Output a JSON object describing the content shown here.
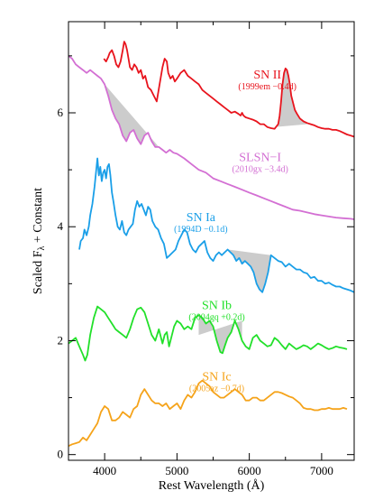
{
  "chart_data": {
    "type": "line",
    "title": "",
    "xlabel": "Rest Wavelength (Å)",
    "ylabel_main": "Scaled F",
    "ylabel_sub": "λ",
    "ylabel_rest": " + Constant",
    "xlim": [
      3500,
      7450
    ],
    "ylim": [
      -0.1,
      7.6
    ],
    "xticks": [
      4000,
      5000,
      6000,
      7000
    ],
    "xtick_labels": [
      "4000",
      "5000",
      "6000",
      "7000"
    ],
    "yticks": [
      0,
      2,
      4,
      6
    ],
    "ytick_labels": [
      "0",
      "2",
      "4",
      "6"
    ],
    "series": [
      {
        "name": "SN II",
        "epoch": "(1999em −0.4d)",
        "color": "#e8141d",
        "label_at": [
          6250,
          6.6
        ],
        "x": [
          3990,
          4020,
          4050,
          4070,
          4100,
          4130,
          4160,
          4190,
          4220,
          4250,
          4270,
          4290,
          4310,
          4330,
          4350,
          4380,
          4410,
          4440,
          4470,
          4500,
          4530,
          4560,
          4600,
          4640,
          4680,
          4720,
          4760,
          4800,
          4830,
          4860,
          4880,
          4910,
          4940,
          4970,
          5000,
          5050,
          5100,
          5150,
          5200,
          5250,
          5300,
          5350,
          5400,
          5450,
          5500,
          5550,
          5600,
          5650,
          5700,
          5750,
          5800,
          5850,
          5880,
          5900,
          5920,
          5950,
          6000,
          6050,
          6100,
          6150,
          6200,
          6250,
          6300,
          6350,
          6400,
          6420,
          6440,
          6460,
          6480,
          6500,
          6520,
          6540,
          6560,
          6580,
          6600,
          6630,
          6660,
          6700,
          6750,
          6800,
          6850,
          6900,
          6950,
          7000,
          7050,
          7100,
          7150,
          7200,
          7250,
          7300,
          7350,
          7400,
          7450
        ],
        "y": [
          6.95,
          6.9,
          6.98,
          7.05,
          7.1,
          7.0,
          6.85,
          6.8,
          6.9,
          7.1,
          7.25,
          7.2,
          7.1,
          6.95,
          6.8,
          6.75,
          6.85,
          6.8,
          6.7,
          6.75,
          6.6,
          6.65,
          6.45,
          6.4,
          6.3,
          6.2,
          6.5,
          6.8,
          6.95,
          6.9,
          6.7,
          6.6,
          6.65,
          6.55,
          6.6,
          6.7,
          6.75,
          6.65,
          6.6,
          6.55,
          6.5,
          6.4,
          6.35,
          6.3,
          6.25,
          6.2,
          6.15,
          6.1,
          6.05,
          6.0,
          6.02,
          5.98,
          5.95,
          6.0,
          5.95,
          5.92,
          5.9,
          5.88,
          5.85,
          5.8,
          5.8,
          5.75,
          5.73,
          5.72,
          5.8,
          5.95,
          6.2,
          6.5,
          6.7,
          6.78,
          6.75,
          6.65,
          6.5,
          6.3,
          6.2,
          6.05,
          5.98,
          5.9,
          5.85,
          5.82,
          5.8,
          5.78,
          5.75,
          5.73,
          5.72,
          5.72,
          5.7,
          5.7,
          5.68,
          5.65,
          5.62,
          5.6,
          5.58
        ]
      },
      {
        "name": "SLSN−I",
        "epoch": "(2010gx −3.4d)",
        "color": "#d36fd3",
        "label_at": [
          6150,
          5.15
        ],
        "x": [
          3500,
          3550,
          3600,
          3650,
          3700,
          3750,
          3800,
          3850,
          3900,
          3950,
          4000,
          4050,
          4100,
          4150,
          4200,
          4250,
          4300,
          4350,
          4400,
          4450,
          4500,
          4550,
          4600,
          4650,
          4700,
          4750,
          4800,
          4850,
          4900,
          4950,
          5000,
          5100,
          5200,
          5300,
          5400,
          5500,
          5600,
          5700,
          5800,
          5900,
          6000,
          6100,
          6200,
          6300,
          6400,
          6500,
          6600,
          6700,
          6800,
          6900,
          7000,
          7100,
          7200,
          7300,
          7400,
          7450
        ],
        "y": [
          7.0,
          6.95,
          6.85,
          6.8,
          6.75,
          6.7,
          6.75,
          6.7,
          6.65,
          6.6,
          6.5,
          6.3,
          6.05,
          5.9,
          5.8,
          5.6,
          5.5,
          5.65,
          5.7,
          5.55,
          5.45,
          5.6,
          5.65,
          5.5,
          5.4,
          5.4,
          5.35,
          5.3,
          5.35,
          5.3,
          5.28,
          5.2,
          5.1,
          5.0,
          4.95,
          4.85,
          4.8,
          4.75,
          4.7,
          4.65,
          4.6,
          4.55,
          4.5,
          4.45,
          4.4,
          4.35,
          4.3,
          4.28,
          4.25,
          4.22,
          4.2,
          4.18,
          4.16,
          4.15,
          4.14,
          4.13
        ]
      },
      {
        "name": "SN Ia",
        "epoch": "(1994D −0.1d)",
        "color": "#1a9fe8",
        "label_at": [
          5330,
          4.1
        ],
        "x": [
          3650,
          3670,
          3700,
          3720,
          3750,
          3780,
          3800,
          3830,
          3860,
          3880,
          3900,
          3920,
          3940,
          3960,
          3980,
          4000,
          4020,
          4040,
          4060,
          4080,
          4100,
          4120,
          4150,
          4180,
          4210,
          4240,
          4270,
          4300,
          4330,
          4360,
          4390,
          4420,
          4450,
          4480,
          4510,
          4540,
          4570,
          4600,
          4630,
          4660,
          4700,
          4740,
          4780,
          4820,
          4860,
          4900,
          4940,
          4980,
          5020,
          5060,
          5100,
          5140,
          5180,
          5220,
          5260,
          5300,
          5340,
          5380,
          5420,
          5460,
          5500,
          5540,
          5580,
          5620,
          5660,
          5700,
          5740,
          5780,
          5820,
          5860,
          5900,
          5940,
          5980,
          6020,
          6060,
          6100,
          6140,
          6180,
          6220,
          6260,
          6300,
          6350,
          6400,
          6450,
          6500,
          6550,
          6600,
          6650,
          6700,
          6750,
          6800,
          6850,
          6900,
          6950,
          7000,
          7050,
          7100,
          7150,
          7200,
          7250,
          7300,
          7350,
          7400,
          7450
        ],
        "y": [
          3.6,
          3.75,
          3.8,
          3.95,
          3.85,
          4.0,
          4.2,
          4.4,
          4.7,
          4.95,
          5.2,
          4.9,
          5.05,
          4.8,
          4.95,
          5.0,
          4.85,
          5.05,
          5.1,
          4.9,
          4.6,
          4.45,
          4.2,
          4.0,
          3.95,
          4.1,
          3.9,
          3.85,
          3.95,
          4.0,
          4.05,
          4.3,
          4.45,
          4.35,
          4.4,
          4.3,
          4.2,
          4.35,
          4.3,
          4.1,
          4.0,
          3.95,
          3.8,
          3.7,
          3.45,
          3.5,
          3.55,
          3.6,
          3.75,
          3.85,
          3.95,
          3.9,
          3.7,
          3.6,
          3.55,
          3.65,
          3.7,
          3.75,
          3.55,
          3.45,
          3.4,
          3.5,
          3.55,
          3.5,
          3.55,
          3.6,
          3.55,
          3.5,
          3.4,
          3.45,
          3.35,
          3.4,
          3.35,
          3.3,
          3.2,
          3.0,
          2.9,
          2.85,
          3.0,
          3.2,
          3.5,
          3.45,
          3.4,
          3.38,
          3.3,
          3.35,
          3.3,
          3.25,
          3.25,
          3.2,
          3.18,
          3.1,
          3.12,
          3.05,
          3.05,
          3.0,
          3.02,
          2.98,
          2.95,
          2.95,
          2.92,
          2.9,
          2.88,
          2.85
        ]
      },
      {
        "name": "SN Ib",
        "epoch": "(2004gq +0.2d)",
        "color": "#22e02a",
        "label_at": [
          5550,
          2.55
        ],
        "x": [
          3500,
          3550,
          3600,
          3650,
          3700,
          3730,
          3760,
          3800,
          3850,
          3900,
          3950,
          4000,
          4050,
          4100,
          4150,
          4200,
          4250,
          4300,
          4350,
          4400,
          4450,
          4500,
          4550,
          4600,
          4650,
          4700,
          4750,
          4800,
          4830,
          4860,
          4890,
          4920,
          4960,
          5000,
          5050,
          5100,
          5150,
          5200,
          5250,
          5300,
          5350,
          5400,
          5450,
          5500,
          5550,
          5600,
          5630,
          5660,
          5700,
          5750,
          5800,
          5850,
          5900,
          5950,
          6000,
          6050,
          6100,
          6150,
          6200,
          6250,
          6300,
          6350,
          6400,
          6450,
          6500,
          6550,
          6600,
          6650,
          6700,
          6750,
          6800,
          6850,
          6900,
          6950,
          7000,
          7050,
          7100,
          7150,
          7200,
          7250,
          7300,
          7350
        ],
        "y": [
          1.95,
          2.0,
          2.05,
          1.9,
          1.75,
          1.65,
          1.75,
          2.1,
          2.4,
          2.6,
          2.55,
          2.5,
          2.4,
          2.3,
          2.2,
          2.15,
          2.1,
          2.05,
          2.2,
          2.4,
          2.55,
          2.58,
          2.5,
          2.3,
          2.1,
          2.0,
          2.2,
          1.95,
          2.1,
          2.15,
          1.9,
          2.05,
          2.25,
          2.35,
          2.3,
          2.2,
          2.25,
          2.2,
          2.4,
          2.45,
          2.4,
          2.3,
          2.35,
          2.25,
          2.0,
          1.8,
          1.78,
          1.9,
          2.05,
          2.15,
          2.35,
          2.2,
          2.0,
          1.9,
          1.85,
          2.05,
          2.1,
          2.0,
          1.95,
          1.9,
          1.92,
          2.05,
          2.0,
          1.92,
          1.85,
          1.95,
          1.9,
          1.85,
          1.88,
          1.92,
          1.9,
          1.85,
          1.9,
          1.95,
          1.92,
          1.88,
          1.85,
          1.87,
          1.9,
          1.88,
          1.87,
          1.85
        ]
      },
      {
        "name": "SN Ic",
        "epoch": "(2005az −0.7d)",
        "color": "#f5a31a",
        "label_at": [
          5550,
          1.3
        ],
        "x": [
          3500,
          3550,
          3600,
          3650,
          3700,
          3750,
          3800,
          3850,
          3900,
          3950,
          4000,
          4050,
          4100,
          4150,
          4200,
          4250,
          4300,
          4350,
          4400,
          4450,
          4500,
          4550,
          4600,
          4650,
          4700,
          4750,
          4800,
          4850,
          4900,
          4950,
          5000,
          5050,
          5100,
          5150,
          5200,
          5250,
          5300,
          5350,
          5400,
          5450,
          5500,
          5550,
          5600,
          5650,
          5700,
          5750,
          5800,
          5850,
          5900,
          5950,
          6000,
          6050,
          6100,
          6150,
          6200,
          6250,
          6300,
          6350,
          6400,
          6450,
          6500,
          6550,
          6600,
          6650,
          6700,
          6750,
          6800,
          6850,
          6900,
          6950,
          7000,
          7050,
          7100,
          7150,
          7200,
          7250,
          7300,
          7350
        ],
        "y": [
          0.15,
          0.18,
          0.2,
          0.22,
          0.3,
          0.25,
          0.35,
          0.45,
          0.55,
          0.75,
          0.85,
          0.8,
          0.6,
          0.6,
          0.65,
          0.75,
          0.7,
          0.65,
          0.8,
          0.85,
          1.05,
          1.15,
          1.05,
          0.95,
          0.9,
          0.9,
          0.85,
          0.9,
          0.8,
          0.85,
          0.9,
          0.8,
          0.95,
          1.05,
          1.0,
          1.1,
          1.25,
          1.3,
          1.25,
          1.2,
          1.1,
          1.05,
          1.0,
          1.0,
          1.05,
          1.1,
          1.15,
          1.1,
          1.05,
          0.95,
          0.95,
          1.0,
          1.0,
          0.95,
          0.95,
          1.0,
          1.05,
          1.1,
          1.1,
          1.08,
          1.05,
          1.02,
          1.0,
          0.95,
          0.9,
          0.82,
          0.8,
          0.8,
          0.78,
          0.78,
          0.8,
          0.8,
          0.82,
          0.8,
          0.8,
          0.8,
          0.82,
          0.8
        ]
      }
    ],
    "shaded_regions": [
      {
        "series": 0,
        "x0": 6350,
        "x1": 6800,
        "baseline": [
          [
            6350,
            5.75
          ],
          [
            6800,
            5.8
          ]
        ],
        "color": "#cccccc"
      },
      {
        "series": 1,
        "x0": 4000,
        "x1": 4750,
        "baseline": [
          [
            4000,
            6.5
          ],
          [
            4750,
            5.4
          ]
        ],
        "color": "#cccccc"
      },
      {
        "series": 2,
        "x0": 5700,
        "x1": 6300,
        "baseline": [
          [
            5700,
            3.6
          ],
          [
            6300,
            3.5
          ]
        ],
        "color": "#cccccc"
      },
      {
        "series": 3,
        "x0": 5300,
        "x1": 5900,
        "baseline": [
          [
            5300,
            2.1
          ],
          [
            5900,
            2.35
          ]
        ],
        "color": "#cccccc"
      }
    ]
  }
}
